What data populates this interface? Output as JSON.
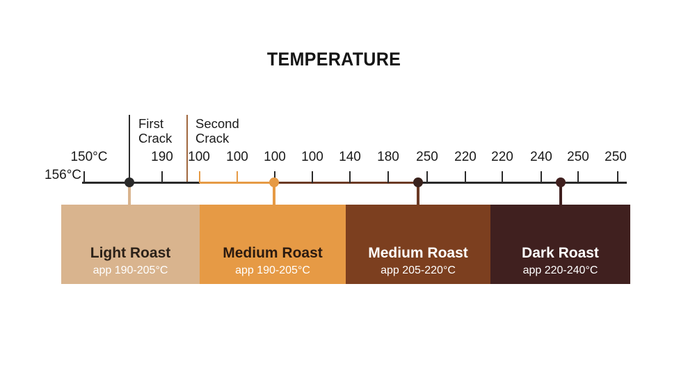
{
  "title": "TEMPERATURE",
  "start_label": "156°C",
  "ticks": [
    "150°C",
    "190",
    "100",
    "100",
    "100",
    "100",
    "140",
    "180",
    "250",
    "220",
    "220",
    "240",
    "250",
    "250"
  ],
  "cracks": {
    "first": {
      "line1": "First",
      "line2": "Crack"
    },
    "second": {
      "line1": "Second",
      "line2": "Crack"
    }
  },
  "roasts": [
    {
      "name": "Light Roast",
      "range": "app 190-205°C",
      "color": "#d9b48e"
    },
    {
      "name": "Medium Roast",
      "range": "app 190-205°C",
      "color": "#e69a45"
    },
    {
      "name": "Medium Roast",
      "range": "app 205-220°C",
      "color": "#7c3f1f"
    },
    {
      "name": "Dark Roast",
      "range": "app 220-240°C",
      "color": "#40201f"
    }
  ],
  "colors": {
    "axis": "#2a2a2a",
    "first_crack_line": "#2a2a2a",
    "second_crack_line": "#a0673e",
    "light_marker_drop": "#d9b48e",
    "medium_marker": "#e69a45",
    "medium_dark_marker": "#4a2a22",
    "dark_marker": "#40201f"
  }
}
